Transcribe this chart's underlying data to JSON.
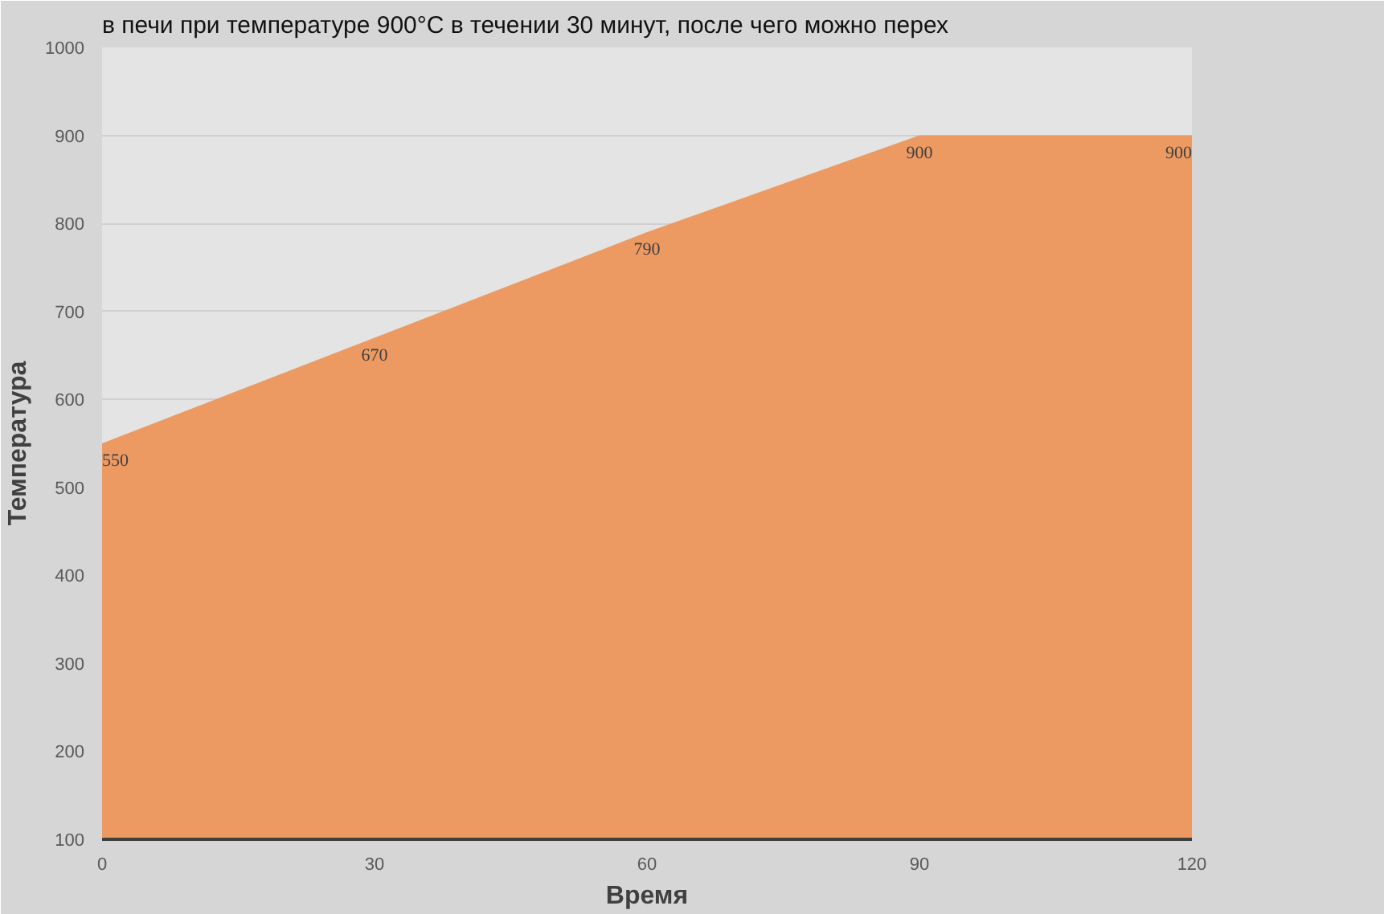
{
  "chart_data": {
    "type": "area",
    "xlabel": "Время",
    "ylabel": "Температура",
    "annotations": [
      "в печи при температуре 900°С в течении 30 минут, после чего можно перех"
    ],
    "x": [
      0,
      30,
      60,
      90,
      120
    ],
    "series": [
      {
        "color": "#ec9a62",
        "values": [
          550,
          670,
          790,
          900,
          900
        ]
      }
    ],
    "xlim": [
      0,
      120
    ],
    "xticks": [
      0,
      30,
      60,
      90,
      120
    ],
    "ylim": [
      100,
      1000
    ],
    "yticks": [
      100,
      200,
      300,
      400,
      500,
      600,
      700,
      800,
      900,
      1000
    ],
    "grid": "y",
    "data_labels": true
  }
}
